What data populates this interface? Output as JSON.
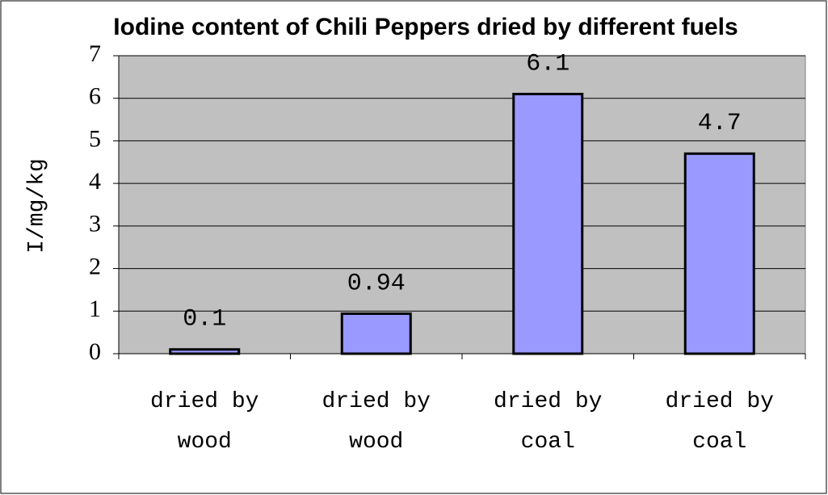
{
  "chart_data": {
    "type": "bar",
    "title": "Iodine content of Chili Peppers dried by different fuels",
    "ylabel": "I/mg/kg",
    "categories": [
      "dried by wood",
      "dried by wood",
      "dried by coal",
      "dried by coal"
    ],
    "values": [
      0.1,
      0.94,
      6.1,
      4.7
    ],
    "color": "#9999ff",
    "ylim": [
      0,
      7
    ],
    "yticks": [
      0,
      1,
      2,
      3,
      4,
      5,
      6,
      7
    ],
    "grid": true
  }
}
